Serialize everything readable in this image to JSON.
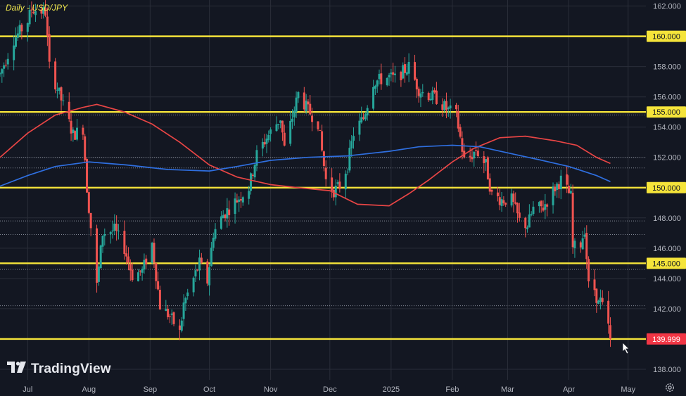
{
  "header": {
    "title": "Daily - USD/JPY"
  },
  "brand": {
    "name": "TradingView",
    "logo_icon": "tradingview-logo-icon"
  },
  "settings": {
    "icon": "gear-icon"
  },
  "colors": {
    "background": "#131722",
    "grid": "#2a2e39",
    "bull": "#26a69a",
    "bear": "#ef5350",
    "level": "#f5e43a",
    "ma_red": "#e84545",
    "ma_blue": "#2f6fe0",
    "axis_text": "#b2b5be",
    "price_tag": "#f23645"
  },
  "chart_data": {
    "type": "candlestick",
    "title": "Daily - USD/JPY",
    "x_ticks": [
      "Jul",
      "Aug",
      "Sep",
      "Oct",
      "Nov",
      "Dec",
      "2025",
      "Feb",
      "Mar",
      "Apr",
      "May"
    ],
    "y_ticks": [
      138,
      140,
      142,
      144,
      146,
      148,
      150,
      152,
      154,
      156,
      158,
      160,
      162
    ],
    "y_tick_labels": [
      "138.000",
      "140.000",
      "142.000",
      "144.000",
      "146.000",
      "148.000",
      "150.000",
      "152.000",
      "154.000",
      "156.000",
      "158.000",
      "160.000",
      "162.000"
    ],
    "ylim": [
      137.3,
      162.4
    ],
    "horizontal_levels": [
      {
        "value": 160.0,
        "label": "160.000"
      },
      {
        "value": 155.0,
        "label": "155.000"
      },
      {
        "value": 150.0,
        "label": "150.000"
      },
      {
        "value": 145.0,
        "label": "145.000"
      },
      {
        "value": 139.999,
        "label": "139.999"
      }
    ],
    "current_price": {
      "value": 139.999,
      "label": "139.999"
    },
    "dotted_levels": [
      154.8,
      152.0,
      151.3,
      147.8,
      146.9,
      144.6,
      142.2
    ],
    "anchor_path": [
      [
        "2024-06-17",
        157.5
      ],
      [
        "2024-06-24",
        159.8
      ],
      [
        "2024-07-01",
        161.0
      ],
      [
        "2024-07-03",
        161.8
      ],
      [
        "2024-07-10",
        161.6
      ],
      [
        "2024-07-12",
        158.0
      ],
      [
        "2024-07-17",
        156.2
      ],
      [
        "2024-07-24",
        153.5
      ],
      [
        "2024-07-29",
        153.9
      ],
      [
        "2024-07-31",
        150.0
      ],
      [
        "2024-08-05",
        143.5
      ],
      [
        "2024-08-08",
        147.0
      ],
      [
        "2024-08-14",
        147.2
      ],
      [
        "2024-08-19",
        146.0
      ],
      [
        "2024-08-23",
        144.2
      ],
      [
        "2024-08-28",
        144.5
      ],
      [
        "2024-09-02",
        146.3
      ],
      [
        "2024-09-06",
        142.2
      ],
      [
        "2024-09-11",
        141.5
      ],
      [
        "2024-09-16",
        140.4
      ],
      [
        "2024-09-18",
        142.3
      ],
      [
        "2024-09-26",
        145.0
      ],
      [
        "2024-09-30",
        143.8
      ],
      [
        "2024-10-03",
        147.0
      ],
      [
        "2024-10-08",
        148.2
      ],
      [
        "2024-10-15",
        149.2
      ],
      [
        "2024-10-21",
        150.0
      ],
      [
        "2024-10-25",
        152.2
      ],
      [
        "2024-10-30",
        153.3
      ],
      [
        "2024-11-06",
        154.6
      ],
      [
        "2024-11-08",
        152.6
      ],
      [
        "2024-11-15",
        156.2
      ],
      [
        "2024-11-20",
        155.1
      ],
      [
        "2024-11-25",
        154.3
      ],
      [
        "2024-11-29",
        150.5
      ],
      [
        "2024-12-03",
        149.8
      ],
      [
        "2024-12-06",
        150.1
      ],
      [
        "2024-12-10",
        151.5
      ],
      [
        "2024-12-13",
        153.6
      ],
      [
        "2024-12-18",
        154.6
      ],
      [
        "2024-12-23",
        157.0
      ],
      [
        "2024-12-31",
        157.3
      ],
      [
        "2025-01-03",
        157.2
      ],
      [
        "2025-01-10",
        158.0
      ],
      [
        "2025-01-15",
        156.5
      ],
      [
        "2025-01-17",
        156.3
      ],
      [
        "2025-01-24",
        155.9
      ],
      [
        "2025-01-29",
        155.2
      ],
      [
        "2025-02-03",
        154.8
      ],
      [
        "2025-02-07",
        151.8
      ],
      [
        "2025-02-10",
        152.0
      ],
      [
        "2025-02-13",
        152.5
      ],
      [
        "2025-02-18",
        151.5
      ],
      [
        "2025-02-21",
        149.5
      ],
      [
        "2025-02-26",
        149.2
      ],
      [
        "2025-03-03",
        149.2
      ],
      [
        "2025-03-07",
        147.8
      ],
      [
        "2025-03-11",
        147.5
      ],
      [
        "2025-03-14",
        148.6
      ],
      [
        "2025-03-19",
        148.7
      ],
      [
        "2025-03-25",
        150.0
      ],
      [
        "2025-03-28",
        150.5
      ],
      [
        "2025-04-02",
        149.4
      ],
      [
        "2025-04-03",
        146.0
      ],
      [
        "2025-04-07",
        146.3
      ],
      [
        "2025-04-09",
        147.3
      ],
      [
        "2025-04-11",
        143.5
      ],
      [
        "2025-04-14",
        143.3
      ],
      [
        "2025-04-16",
        142.3
      ],
      [
        "2025-04-17",
        142.5
      ],
      [
        "2025-04-18",
        142.1
      ],
      [
        "2025-04-21",
        140.8
      ],
      [
        "2025-04-22",
        139.999
      ]
    ],
    "moving_averages": [
      {
        "name": "red",
        "color": "#e84545",
        "points": [
          [
            "2024-06-17",
            152.0
          ],
          [
            "2024-07-01",
            153.6
          ],
          [
            "2024-07-15",
            154.8
          ],
          [
            "2024-07-29",
            155.3
          ],
          [
            "2024-08-05",
            155.5
          ],
          [
            "2024-08-19",
            155.0
          ],
          [
            "2024-09-02",
            154.2
          ],
          [
            "2024-09-16",
            153.0
          ],
          [
            "2024-10-01",
            151.5
          ],
          [
            "2024-10-15",
            150.7
          ],
          [
            "2024-11-01",
            150.2
          ],
          [
            "2024-11-15",
            150.0
          ],
          [
            "2024-12-01",
            149.8
          ],
          [
            "2024-12-15",
            148.9
          ],
          [
            "2024-12-31",
            148.8
          ],
          [
            "2025-01-10",
            149.6
          ],
          [
            "2025-01-20",
            150.5
          ],
          [
            "2025-02-01",
            151.7
          ],
          [
            "2025-02-12",
            152.6
          ],
          [
            "2025-02-25",
            153.3
          ],
          [
            "2025-03-10",
            153.4
          ],
          [
            "2025-03-25",
            153.1
          ],
          [
            "2025-04-05",
            152.8
          ],
          [
            "2025-04-15",
            152.0
          ],
          [
            "2025-04-22",
            151.6
          ]
        ]
      },
      {
        "name": "blue",
        "color": "#2f6fe0",
        "points": [
          [
            "2024-06-17",
            150.1
          ],
          [
            "2024-07-01",
            150.8
          ],
          [
            "2024-07-15",
            151.4
          ],
          [
            "2024-08-01",
            151.7
          ],
          [
            "2024-08-20",
            151.5
          ],
          [
            "2024-09-10",
            151.2
          ],
          [
            "2024-10-01",
            151.1
          ],
          [
            "2024-10-15",
            151.4
          ],
          [
            "2024-11-01",
            151.8
          ],
          [
            "2024-11-20",
            152.0
          ],
          [
            "2024-12-10",
            152.1
          ],
          [
            "2024-12-31",
            152.4
          ],
          [
            "2025-01-15",
            152.7
          ],
          [
            "2025-02-01",
            152.8
          ],
          [
            "2025-02-15",
            152.7
          ],
          [
            "2025-03-01",
            152.3
          ],
          [
            "2025-03-15",
            151.9
          ],
          [
            "2025-04-01",
            151.4
          ],
          [
            "2025-04-15",
            150.8
          ],
          [
            "2025-04-22",
            150.4
          ]
        ]
      }
    ]
  }
}
